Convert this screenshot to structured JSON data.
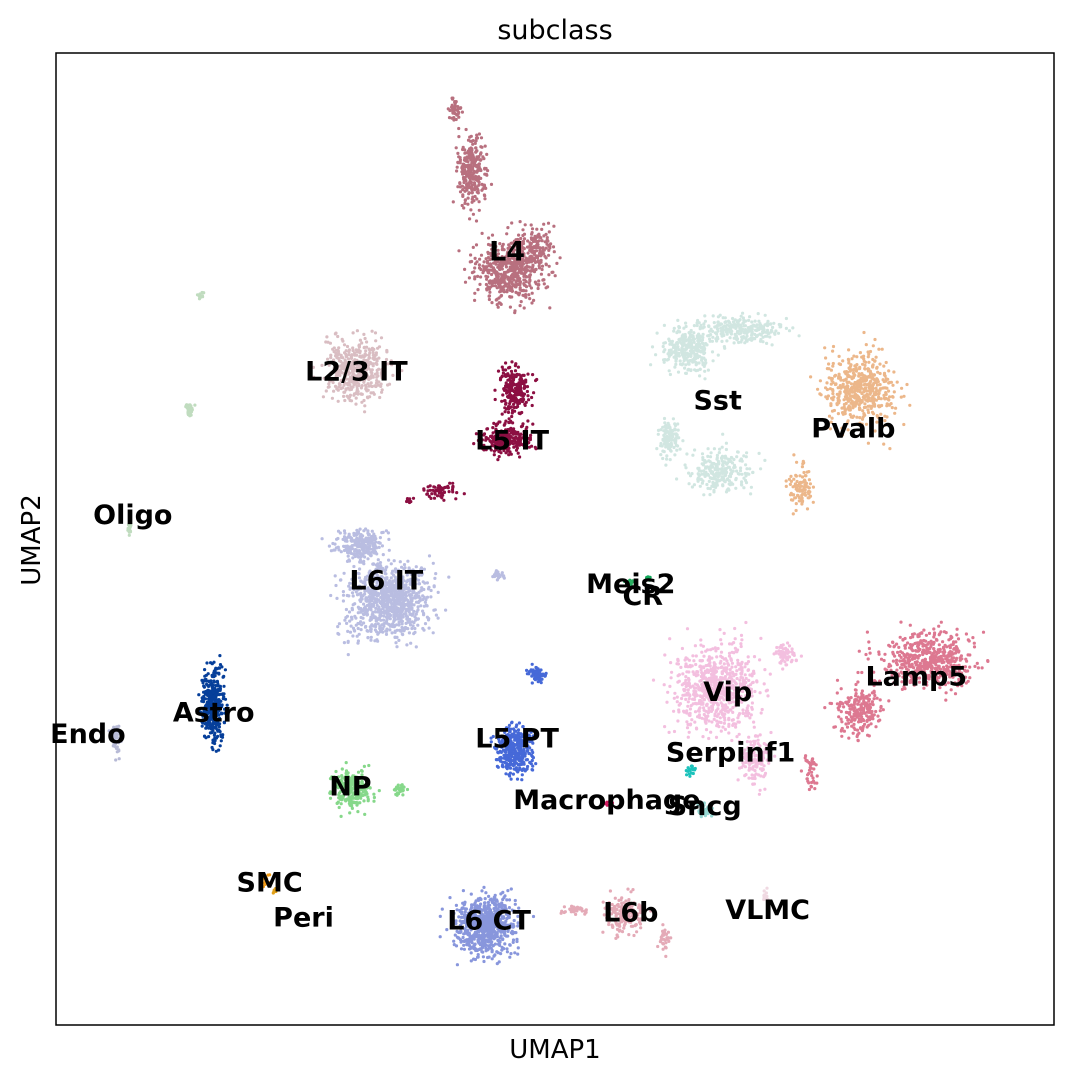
{
  "chart_data": {
    "type": "scatter",
    "title": "subclass",
    "xlabel": "UMAP1",
    "ylabel": "UMAP2",
    "xlim": [
      0,
      100
    ],
    "ylim": [
      0,
      100
    ],
    "grid": false,
    "ticks": false,
    "legend": "on data",
    "clusters": [
      {
        "name": "L4",
        "color": "#b8707f",
        "label_at": [
          45.2,
          79.4
        ]
      },
      {
        "name": "L2/3 IT",
        "color": "#d9bdc2",
        "label_at": [
          30.1,
          67.1
        ]
      },
      {
        "name": "L5 IT",
        "color": "#8c0f42",
        "label_at": [
          45.7,
          60.0
        ]
      },
      {
        "name": "Sst",
        "color": "#d1e6e1",
        "label_at": [
          66.3,
          64.1
        ]
      },
      {
        "name": "Pvalb",
        "color": "#ecb78a",
        "label_at": [
          79.9,
          61.2
        ]
      },
      {
        "name": "Oligo",
        "color": "#c0dcbf",
        "label_at": [
          7.7,
          52.3
        ]
      },
      {
        "name": "L6 IT",
        "color": "#b9bde1",
        "label_at": [
          33.1,
          45.6
        ]
      },
      {
        "name": "Meis2",
        "color": "#2ab062",
        "label_at": [
          57.6,
          45.2
        ]
      },
      {
        "name": "CR",
        "color": "#12a85a",
        "label_at": [
          58.8,
          44.0
        ]
      },
      {
        "name": "Lamp5",
        "color": "#dd7891",
        "label_at": [
          86.2,
          35.7
        ]
      },
      {
        "name": "Vip",
        "color": "#f3bfdf",
        "label_at": [
          67.3,
          34.1
        ]
      },
      {
        "name": "Astro",
        "color": "#063f9a",
        "label_at": [
          15.8,
          32.0
        ]
      },
      {
        "name": "Endo",
        "color": "#b7bad6",
        "label_at": [
          3.2,
          29.8
        ]
      },
      {
        "name": "L5 PT",
        "color": "#4669d8",
        "label_at": [
          46.2,
          29.3
        ]
      },
      {
        "name": "Serpinf1",
        "color": "#1cc2bb",
        "label_at": [
          67.6,
          27.9
        ]
      },
      {
        "name": "NP",
        "color": "#86d88a",
        "label_at": [
          29.5,
          24.4
        ]
      },
      {
        "name": "Macrophage",
        "color": "#d0185e",
        "label_at": [
          55.2,
          23.0
        ]
      },
      {
        "name": "Sncg",
        "color": "#98d9d4",
        "label_at": [
          65.0,
          22.4
        ]
      },
      {
        "name": "SMC",
        "color": "#f49c16",
        "label_at": [
          21.4,
          14.5
        ]
      },
      {
        "name": "Peri",
        "color": "#e1a118",
        "label_at": [
          24.8,
          10.9
        ]
      },
      {
        "name": "L6 CT",
        "color": "#8896dc",
        "label_at": [
          43.4,
          10.6
        ]
      },
      {
        "name": "L6b",
        "color": "#e4aab7",
        "label_at": [
          57.6,
          11.4
        ]
      },
      {
        "name": "VLMC",
        "color": "#f0d9e2",
        "label_at": [
          71.3,
          11.7
        ]
      }
    ]
  }
}
